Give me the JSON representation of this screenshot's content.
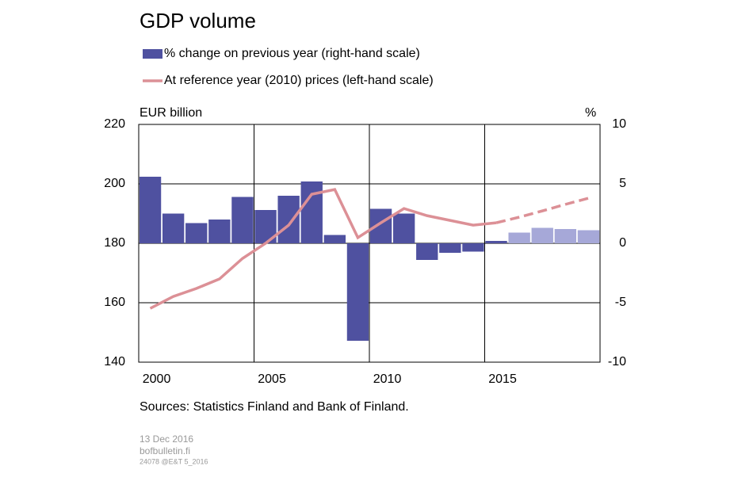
{
  "chart_data": {
    "type": "bar-line",
    "title": "GDP volume",
    "left_axis_label": "EUR billion",
    "right_axis_label": "%",
    "x": [
      2000,
      2001,
      2002,
      2003,
      2004,
      2005,
      2006,
      2007,
      2008,
      2009,
      2010,
      2011,
      2012,
      2013,
      2014,
      2015,
      2016,
      2017,
      2018,
      2019
    ],
    "xlim": [
      1999.5,
      2019.5
    ],
    "xticks": [
      2000,
      2005,
      2010,
      2015
    ],
    "xgrid": [
      2004.5,
      2009.5,
      2014.5
    ],
    "ylim": [
      140,
      220
    ],
    "yticks": [
      220,
      200,
      180,
      160,
      140
    ],
    "y2lim": [
      -10,
      10
    ],
    "y2ticks": [
      10,
      5,
      0,
      -5,
      -10
    ],
    "series": [
      {
        "name": "% change on previous year (right-hand scale)",
        "type": "bar",
        "axis": "y2",
        "color": "#4f51a0",
        "values": [
          5.6,
          2.5,
          1.7,
          2.0,
          3.9,
          2.8,
          4.0,
          5.2,
          0.7,
          -8.2,
          2.9,
          2.5,
          -1.4,
          -0.8,
          -0.7,
          0.2,
          0.9,
          1.3,
          1.2,
          1.1
        ],
        "colors": [
          "#4f51a0",
          "#4f51a0",
          "#4f51a0",
          "#4f51a0",
          "#4f51a0",
          "#4f51a0",
          "#4f51a0",
          "#4f51a0",
          "#4f51a0",
          "#4f51a0",
          "#4f51a0",
          "#4f51a0",
          "#4f51a0",
          "#4f51a0",
          "#4f51a0",
          "#4f51a0",
          "#a6a8d8",
          "#a6a8d8",
          "#a6a8d8",
          "#a6a8d8"
        ]
      },
      {
        "name": "At reference year (2010) prices (left-hand scale)",
        "type": "line",
        "color": "#dc9096",
        "dashed_from": 2015,
        "values": [
          158.1,
          162.1,
          164.8,
          168.0,
          174.9,
          180.0,
          186.1,
          196.5,
          198.1,
          181.9,
          186.9,
          191.7,
          189.3,
          187.7,
          186.1,
          186.9,
          188.8,
          190.9,
          193.1,
          195.2
        ]
      }
    ],
    "source": "Sources: Statistics Finland  and Bank of Finland.",
    "date": "13 Dec 2016",
    "site": "bofbulletin.fi",
    "code": "24078 @E&T 5_2016"
  }
}
